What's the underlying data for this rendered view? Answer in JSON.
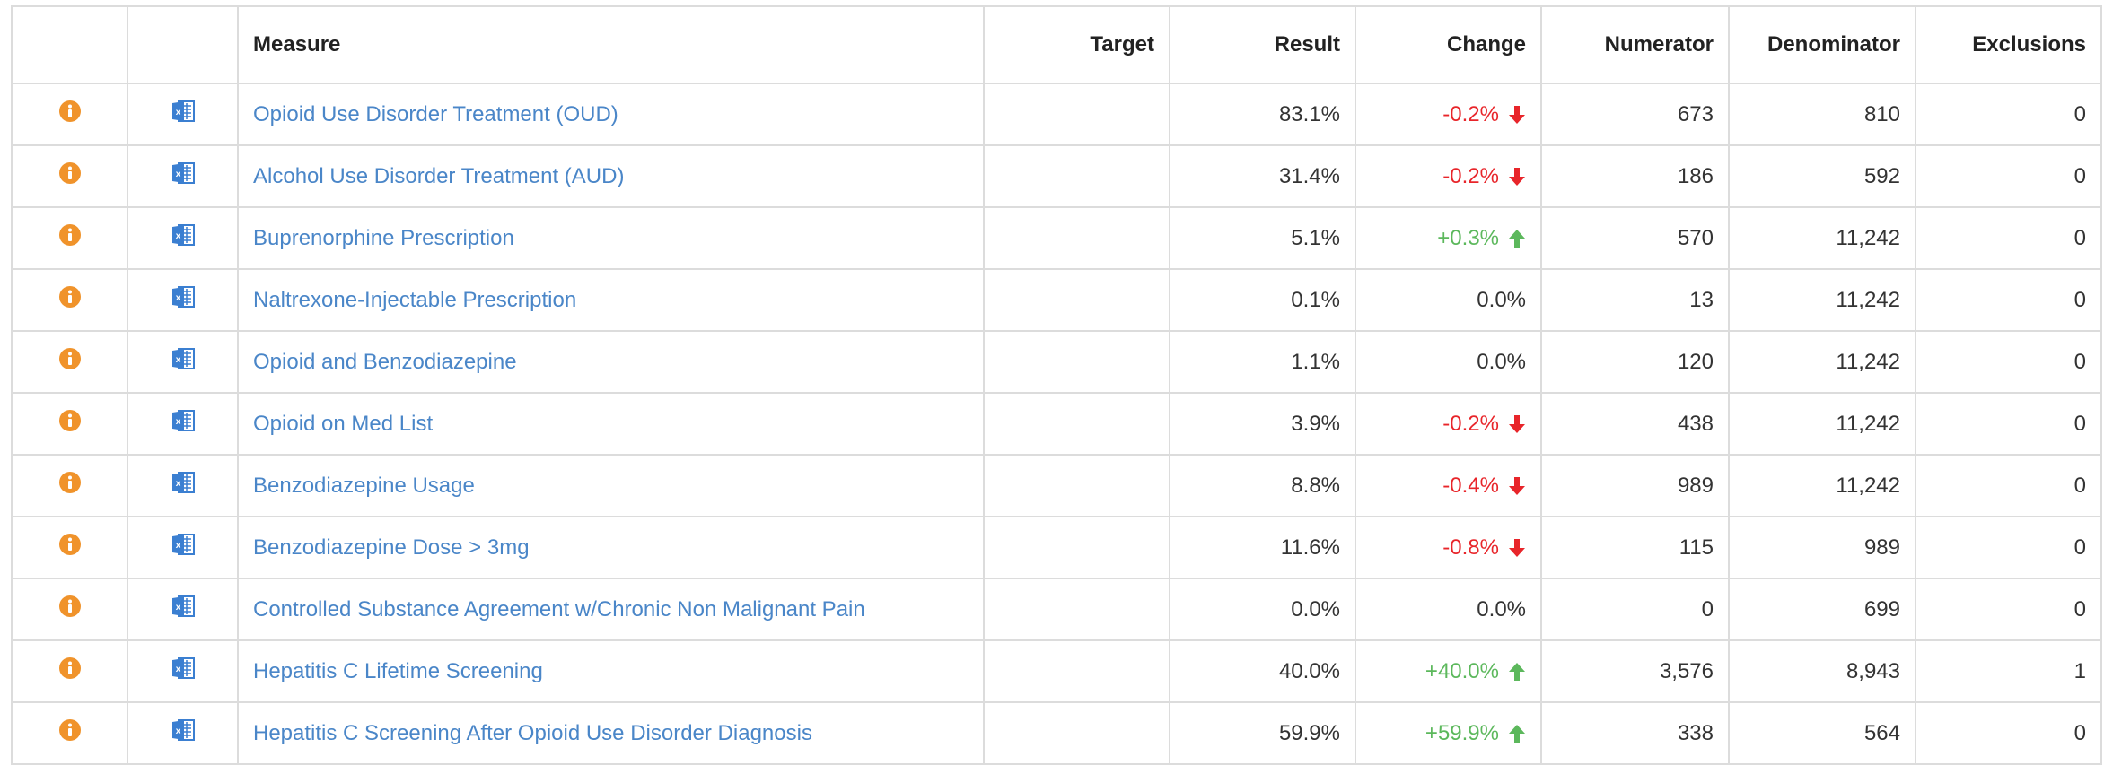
{
  "table": {
    "header": [
      "Measure",
      "Target",
      "Result",
      "Change",
      "Numerator",
      "Denominator",
      "Exclusions"
    ],
    "rows": [
      {
        "measure": "Opioid Use Disorder Treatment (OUD)",
        "result": "83.1%",
        "change": "-0.2%",
        "trend": "down",
        "numerator": "673",
        "denominator": "810",
        "exclusions": "0"
      },
      {
        "measure": "Alcohol Use Disorder Treatment (AUD)",
        "result": "31.4%",
        "change": "-0.2%",
        "trend": "down",
        "numerator": "186",
        "denominator": "592",
        "exclusions": "0"
      },
      {
        "measure": "Buprenorphine Prescription",
        "result": "5.1%",
        "change": "+0.3%",
        "trend": "up",
        "numerator": "570",
        "denominator": "11,242",
        "exclusions": "0"
      },
      {
        "measure": "Naltrexone-Injectable Prescription",
        "result": "0.1%",
        "change": "0.0%",
        "trend": "none",
        "numerator": "13",
        "denominator": "11,242",
        "exclusions": "0"
      },
      {
        "measure": "Opioid and Benzodiazepine",
        "result": "1.1%",
        "change": "0.0%",
        "trend": "none",
        "numerator": "120",
        "denominator": "11,242",
        "exclusions": "0"
      },
      {
        "measure": "Opioid on Med List",
        "result": "3.9%",
        "change": "-0.2%",
        "trend": "down",
        "numerator": "438",
        "denominator": "11,242",
        "exclusions": "0"
      },
      {
        "measure": "Benzodiazepine Usage",
        "result": "8.8%",
        "change": "-0.4%",
        "trend": "down",
        "numerator": "989",
        "denominator": "11,242",
        "exclusions": "0"
      },
      {
        "measure": "Benzodiazepine Dose > 3mg",
        "result": "11.6%",
        "change": "-0.8%",
        "trend": "down",
        "numerator": "115",
        "denominator": "989",
        "exclusions": "0"
      },
      {
        "measure": "Controlled Substance Agreement w/Chronic Non Malignant Pain",
        "result": "0.0%",
        "change": "0.0%",
        "trend": "none",
        "numerator": "0",
        "denominator": "699",
        "exclusions": "0"
      },
      {
        "measure": "Hepatitis C Lifetime Screening",
        "result": "40.0%",
        "change": "+40.0%",
        "trend": "up",
        "numerator": "3,576",
        "denominator": "8,943",
        "exclusions": "1"
      },
      {
        "measure": "Hepatitis C Screening After Opioid Use Disorder Diagnosis",
        "result": "59.9%",
        "change": "+59.9%",
        "trend": "up",
        "numerator": "338",
        "denominator": "564",
        "exclusions": "0"
      }
    ]
  }
}
